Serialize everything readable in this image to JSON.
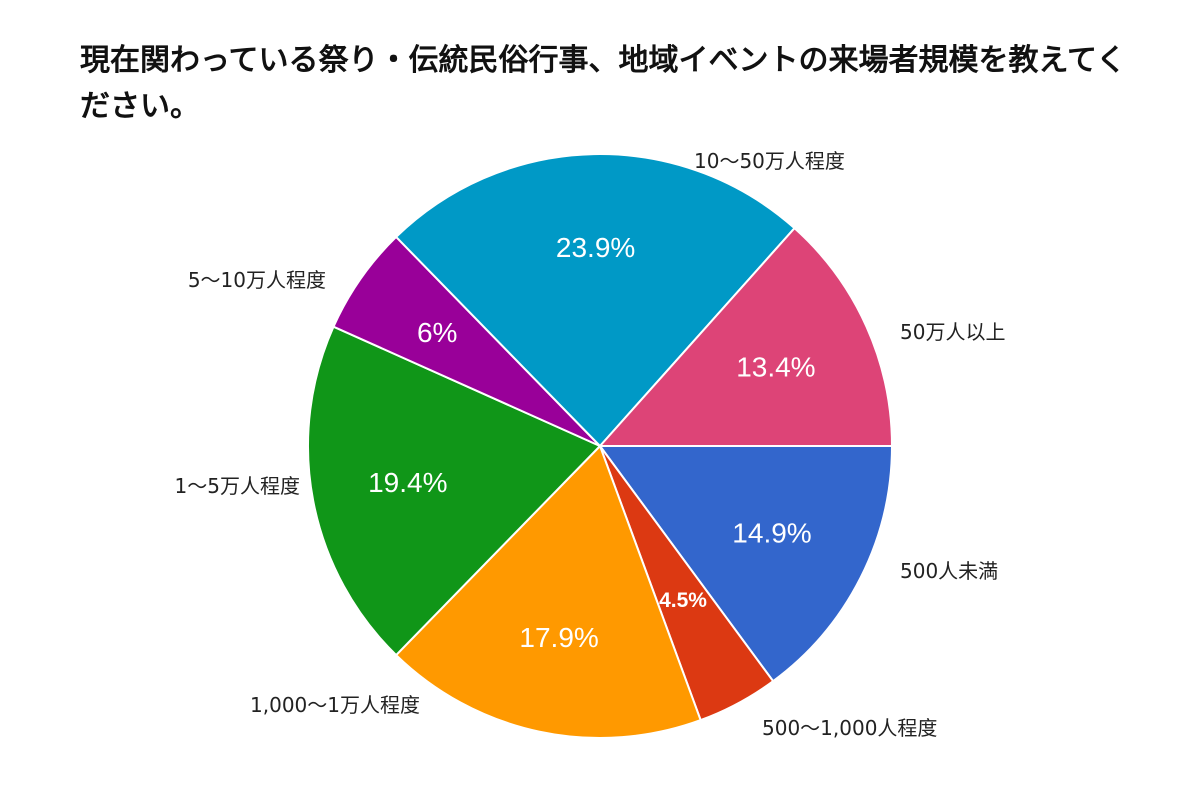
{
  "chart_data": {
    "type": "pie",
    "title": "現在関わっている祭り・伝統民俗行事、地域イベントの来場者規模を教えてください。",
    "slices": [
      {
        "label": "500人未満",
        "value": 14.9,
        "value_label": "14.9%",
        "color": "#3366cc"
      },
      {
        "label": "500〜1,000人程度",
        "value": 4.5,
        "value_label": "4.5%",
        "color": "#dc3912"
      },
      {
        "label": "1,000〜1万人程度",
        "value": 17.9,
        "value_label": "17.9%",
        "color": "#ff9900"
      },
      {
        "label": "1〜5万人程度",
        "value": 19.4,
        "value_label": "19.4%",
        "color": "#109618"
      },
      {
        "label": "5〜10万人程度",
        "value": 6,
        "value_label": "6%",
        "color": "#990099"
      },
      {
        "label": "10〜50万人程度",
        "value": 23.9,
        "value_label": "23.9%",
        "color": "#0099c6"
      },
      {
        "label": "50万人以上",
        "value": 13.4,
        "value_label": "13.4%",
        "color": "#dd4477"
      }
    ],
    "start_position": "3 o'clock",
    "direction": "clockwise",
    "legend": "labels beside slices"
  }
}
